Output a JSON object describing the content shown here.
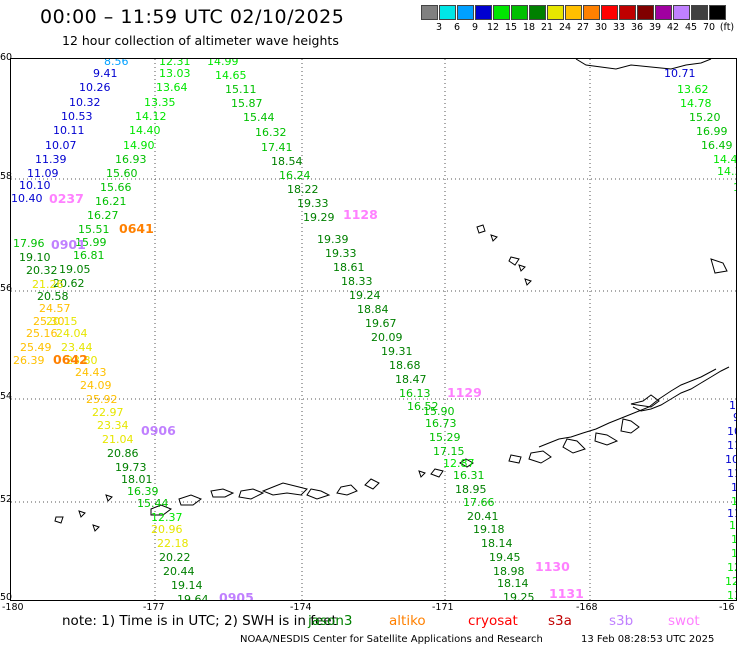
{
  "header": {
    "title": "00:00 – 11:59 UTC 02/10/2025",
    "subtitle": "12 hour collection of altimeter wave heights"
  },
  "legend": {
    "unit": "(ft)",
    "bins": [
      {
        "label": "3",
        "color": "#808080"
      },
      {
        "label": "6",
        "color": "#00e6e6"
      },
      {
        "label": "9",
        "color": "#00a0ff"
      },
      {
        "label": "12",
        "color": "#0000d0"
      },
      {
        "label": "15",
        "color": "#00e600"
      },
      {
        "label": "18",
        "color": "#00c000"
      },
      {
        "label": "21",
        "color": "#008000"
      },
      {
        "label": "24",
        "color": "#e6e600"
      },
      {
        "label": "27",
        "color": "#ffc000"
      },
      {
        "label": "30",
        "color": "#ff8000"
      },
      {
        "label": "33",
        "color": "#ff0000"
      },
      {
        "label": "36",
        "color": "#c00000"
      },
      {
        "label": "39",
        "color": "#800000"
      },
      {
        "label": "42",
        "color": "#a000a0"
      },
      {
        "label": "45",
        "color": "#c080ff"
      },
      {
        "label": "70",
        "color": "#404040"
      },
      {
        "label": "",
        "color": "#000000"
      }
    ]
  },
  "axes": {
    "lon_ticks": [
      "-180",
      "-177",
      "-174",
      "-171",
      "-168",
      "-16"
    ],
    "lat_ticks": [
      "60",
      "58",
      "56",
      "54",
      "52",
      "50"
    ]
  },
  "footer": {
    "note": "note: 1) Time is in UTC; 2) SWH is in feet",
    "missions": [
      {
        "name": "jason3",
        "color": "#008000"
      },
      {
        "name": "altiko",
        "color": "#ff8000"
      },
      {
        "name": "cryosat",
        "color": "#ff0000"
      },
      {
        "name": "s3a",
        "color": "#c00000"
      },
      {
        "name": "s3b",
        "color": "#c080ff"
      },
      {
        "name": "swot",
        "color": "#ff80ff"
      }
    ],
    "credit": "NOAA/NESDIS Center for Satellite Applications and Research",
    "timestamp": "13 Feb 08:28:53 UTC 2025"
  },
  "track_labels": [
    {
      "text": "0237",
      "color": "#ff80ff"
    },
    {
      "text": "0641",
      "color": "#ff8000"
    },
    {
      "text": "0901",
      "color": "#c080ff"
    },
    {
      "text": "0642",
      "color": "#ff8000"
    },
    {
      "text": "0906",
      "color": "#c080ff"
    },
    {
      "text": "0905",
      "color": "#c080ff"
    },
    {
      "text": "1128",
      "color": "#ff80ff"
    },
    {
      "text": "1129",
      "color": "#ff80ff"
    },
    {
      "text": "1130",
      "color": "#ff80ff"
    },
    {
      "text": "1131",
      "color": "#ff80ff"
    }
  ],
  "wave_values": [
    {
      "v": "8.56",
      "c": "#00a0ff"
    },
    {
      "v": "9.41",
      "c": "#0000d0"
    },
    {
      "v": "10.26",
      "c": "#0000d0"
    },
    {
      "v": "10.32",
      "c": "#0000d0"
    },
    {
      "v": "10.53",
      "c": "#0000d0"
    },
    {
      "v": "10.11",
      "c": "#0000d0"
    },
    {
      "v": "10.07",
      "c": "#0000d0"
    },
    {
      "v": "11.39",
      "c": "#0000d0"
    },
    {
      "v": "11.09",
      "c": "#0000d0"
    },
    {
      "v": "10.10",
      "c": "#0000d0"
    },
    {
      "v": "10.40",
      "c": "#0000d0"
    },
    {
      "v": "12.31",
      "c": "#00e600"
    },
    {
      "v": "13.03",
      "c": "#00e600"
    },
    {
      "v": "13.64",
      "c": "#00e600"
    },
    {
      "v": "13.35",
      "c": "#00e600"
    },
    {
      "v": "14.12",
      "c": "#00e600"
    },
    {
      "v": "14.40",
      "c": "#00e600"
    },
    {
      "v": "14.90",
      "c": "#00e600"
    },
    {
      "v": "16.93",
      "c": "#00c000"
    },
    {
      "v": "15.60",
      "c": "#00c000"
    },
    {
      "v": "15.66",
      "c": "#00c000"
    },
    {
      "v": "16.21",
      "c": "#00c000"
    },
    {
      "v": "16.27",
      "c": "#00c000"
    },
    {
      "v": "15.51",
      "c": "#00c000"
    },
    {
      "v": "15.99",
      "c": "#00c000"
    },
    {
      "v": "17.96",
      "c": "#00c000"
    },
    {
      "v": "16.81",
      "c": "#00c000"
    },
    {
      "v": "19.10",
      "c": "#008000"
    },
    {
      "v": "19.05",
      "c": "#008000"
    },
    {
      "v": "20.32",
      "c": "#008000"
    },
    {
      "v": "20.62",
      "c": "#008000"
    },
    {
      "v": "21.26",
      "c": "#e6e600"
    },
    {
      "v": "20.58",
      "c": "#008000"
    },
    {
      "v": "24.57",
      "c": "#ffc000"
    },
    {
      "v": "25.30",
      "c": "#ffc000"
    },
    {
      "v": "20.15",
      "c": "#e6e600"
    },
    {
      "v": "25.16",
      "c": "#ffc000"
    },
    {
      "v": "24.04",
      "c": "#e6e600"
    },
    {
      "v": "25.49",
      "c": "#ffc000"
    },
    {
      "v": "23.44",
      "c": "#e6e600"
    },
    {
      "v": "26.39",
      "c": "#ffc000"
    },
    {
      "v": "23.80",
      "c": "#e6e600"
    },
    {
      "v": "24.43",
      "c": "#ffc000"
    },
    {
      "v": "24.09",
      "c": "#ffc000"
    },
    {
      "v": "25.92",
      "c": "#ffc000"
    },
    {
      "v": "22.97",
      "c": "#e6e600"
    },
    {
      "v": "23.34",
      "c": "#e6e600"
    },
    {
      "v": "21.04",
      "c": "#e6e600"
    },
    {
      "v": "20.86",
      "c": "#008000"
    },
    {
      "v": "19.73",
      "c": "#008000"
    },
    {
      "v": "18.01",
      "c": "#008000"
    },
    {
      "v": "16.39",
      "c": "#00c000"
    },
    {
      "v": "15.44",
      "c": "#00c000"
    },
    {
      "v": "12.37",
      "c": "#00e600"
    },
    {
      "v": "20.96",
      "c": "#e6e600"
    },
    {
      "v": "22.18",
      "c": "#e6e600"
    },
    {
      "v": "20.22",
      "c": "#008000"
    },
    {
      "v": "20.44",
      "c": "#008000"
    },
    {
      "v": "19.14",
      "c": "#008000"
    },
    {
      "v": "19.64",
      "c": "#008000"
    },
    {
      "v": "20.09",
      "c": "#008000"
    },
    {
      "v": "14.99",
      "c": "#00e600"
    },
    {
      "v": "14.65",
      "c": "#00e600"
    },
    {
      "v": "15.11",
      "c": "#00c000"
    },
    {
      "v": "15.87",
      "c": "#00c000"
    },
    {
      "v": "15.44",
      "c": "#00c000"
    },
    {
      "v": "16.32",
      "c": "#00c000"
    },
    {
      "v": "17.41",
      "c": "#00c000"
    },
    {
      "v": "18.54",
      "c": "#008000"
    },
    {
      "v": "16.24",
      "c": "#00c000"
    },
    {
      "v": "18.22",
      "c": "#008000"
    },
    {
      "v": "19.33",
      "c": "#008000"
    },
    {
      "v": "19.29",
      "c": "#008000"
    },
    {
      "v": "19.39",
      "c": "#008000"
    },
    {
      "v": "19.33",
      "c": "#008000"
    },
    {
      "v": "18.61",
      "c": "#008000"
    },
    {
      "v": "18.33",
      "c": "#008000"
    },
    {
      "v": "19.24",
      "c": "#008000"
    },
    {
      "v": "18.84",
      "c": "#008000"
    },
    {
      "v": "19.67",
      "c": "#008000"
    },
    {
      "v": "20.09",
      "c": "#008000"
    },
    {
      "v": "19.31",
      "c": "#008000"
    },
    {
      "v": "18.68",
      "c": "#008000"
    },
    {
      "v": "18.47",
      "c": "#008000"
    },
    {
      "v": "16.13",
      "c": "#00c000"
    },
    {
      "v": "16.52",
      "c": "#00c000"
    },
    {
      "v": "15.90",
      "c": "#00c000"
    },
    {
      "v": "16.73",
      "c": "#00c000"
    },
    {
      "v": "15.29",
      "c": "#00c000"
    },
    {
      "v": "17.15",
      "c": "#00c000"
    },
    {
      "v": "12.87",
      "c": "#00e600"
    },
    {
      "v": "16.31",
      "c": "#00c000"
    },
    {
      "v": "18.95",
      "c": "#008000"
    },
    {
      "v": "17.66",
      "c": "#00c000"
    },
    {
      "v": "20.41",
      "c": "#008000"
    },
    {
      "v": "19.18",
      "c": "#008000"
    },
    {
      "v": "18.14",
      "c": "#008000"
    },
    {
      "v": "19.45",
      "c": "#008000"
    },
    {
      "v": "18.98",
      "c": "#008000"
    },
    {
      "v": "18.14",
      "c": "#008000"
    },
    {
      "v": "19.25",
      "c": "#008000"
    },
    {
      "v": "19.40",
      "c": "#008000"
    },
    {
      "v": "10.71",
      "c": "#0000d0"
    },
    {
      "v": "13.62",
      "c": "#00e600"
    },
    {
      "v": "14.78",
      "c": "#00e600"
    },
    {
      "v": "15.20",
      "c": "#00c000"
    },
    {
      "v": "16.99",
      "c": "#00c000"
    },
    {
      "v": "16.49",
      "c": "#00c000"
    },
    {
      "v": "14.44",
      "c": "#00e600"
    },
    {
      "v": "14.3",
      "c": "#00e600"
    },
    {
      "v": "13",
      "c": "#00e600"
    },
    {
      "v": "10",
      "c": "#0000d0"
    },
    {
      "v": "9",
      "c": "#0000d0"
    },
    {
      "v": "10",
      "c": "#0000d0"
    },
    {
      "v": "11.",
      "c": "#0000d0"
    },
    {
      "v": "10.",
      "c": "#0000d0"
    },
    {
      "v": "11.7",
      "c": "#0000d0"
    },
    {
      "v": "11.8",
      "c": "#0000d0"
    },
    {
      "v": "12.7",
      "c": "#00e600"
    },
    {
      "v": "11.7",
      "c": "#0000d0"
    },
    {
      "v": "12.0",
      "c": "#00e600"
    },
    {
      "v": "13.32",
      "c": "#00e600"
    },
    {
      "v": "12.51",
      "c": "#00e600"
    },
    {
      "v": "12.89",
      "c": "#00e600"
    },
    {
      "v": "12.35",
      "c": "#00e600"
    },
    {
      "v": "13.03",
      "c": "#00e600"
    },
    {
      "v": "13.51",
      "c": "#00e600"
    },
    {
      "v": "14.73",
      "c": "#00e600"
    },
    {
      "v": "13.98",
      "c": "#00e600"
    }
  ]
}
